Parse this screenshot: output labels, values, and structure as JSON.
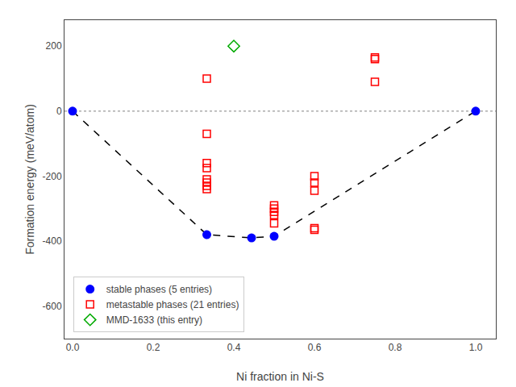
{
  "chart_data": {
    "type": "scatter",
    "xlabel": "Ni fraction in Ni-S",
    "ylabel": "Formation energy (meV/atom)",
    "xlim": [
      -0.02,
      1.05
    ],
    "ylim": [
      -700,
      280
    ],
    "xticks": [
      {
        "value": 0,
        "label": "0.0"
      },
      0.2,
      0.4,
      0.6,
      0.8,
      {
        "value": 1,
        "label": "1.0"
      }
    ],
    "yticks": [
      -600,
      -400,
      -200,
      0,
      200
    ],
    "grid": false,
    "legend": "lower left",
    "series": [
      {
        "type": "hline",
        "values": [
          0
        ],
        "color": "gray",
        "line_style": "dotted"
      },
      {
        "type": "line",
        "x": [
          0.0,
          0.333,
          0.444,
          0.5,
          1.0
        ],
        "values": [
          0,
          -380,
          -390,
          -385,
          0
        ],
        "color": "#000000",
        "line_style": "dashed"
      },
      {
        "name": "stable phases (5 entries)",
        "type": "scatter",
        "marker": "circle",
        "color": "#0000ff",
        "x": [
          0.0,
          0.333,
          0.444,
          0.5,
          1.0
        ],
        "values": [
          0,
          -380,
          -390,
          -385,
          0
        ]
      },
      {
        "name": "metastable phases (21 entries)",
        "type": "scatter",
        "marker": "square-open",
        "color": "#ff0000",
        "x": [
          0.333,
          0.333,
          0.333,
          0.333,
          0.333,
          0.333,
          0.333,
          0.333,
          0.5,
          0.5,
          0.5,
          0.5,
          0.5,
          0.6,
          0.6,
          0.6,
          0.6,
          0.6,
          0.75,
          0.75,
          0.75
        ],
        "values": [
          100,
          -70,
          -160,
          -175,
          -210,
          -220,
          -230,
          -240,
          -290,
          -300,
          -310,
          -320,
          -345,
          -200,
          -220,
          -245,
          -360,
          -365,
          160,
          165,
          90
        ]
      },
      {
        "name": "MMD-1633 (this entry)",
        "type": "scatter",
        "marker": "diamond-open",
        "color": "#00aa00",
        "x": [
          0.4
        ],
        "values": [
          200
        ]
      }
    ]
  }
}
